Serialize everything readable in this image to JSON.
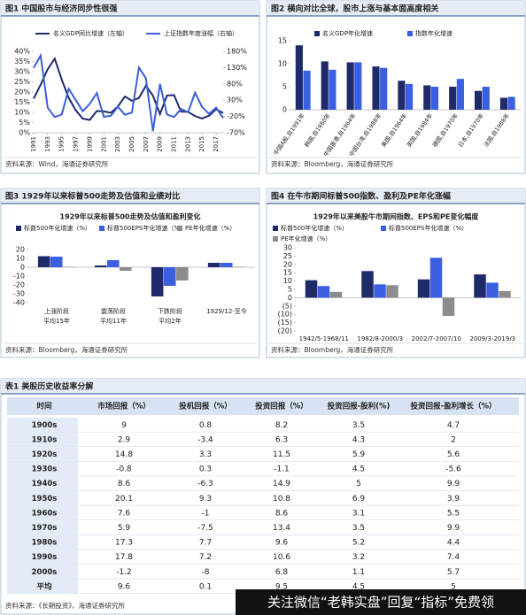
{
  "chart_data": [
    {
      "type": "line",
      "title": "图1  中国股市与经济同步性很强",
      "source": "资料来源：Wind，海通证券研究所",
      "x": [
        1991,
        1992,
        1993,
        1994,
        1995,
        1996,
        1997,
        1998,
        1999,
        2000,
        2001,
        2002,
        2003,
        2004,
        2005,
        2006,
        2007,
        2008,
        2009,
        2010,
        2011,
        2012,
        2013,
        2014,
        2015,
        2016,
        2017,
        2018
      ],
      "xlim": [
        1991,
        2018
      ],
      "xticks": [
        1991,
        1993,
        1995,
        1997,
        1999,
        2001,
        2003,
        2005,
        2007,
        2009,
        2011,
        2013,
        2015,
        2017
      ],
      "ylim": [
        0,
        40
      ],
      "yticks": [
        {
          "value": 0,
          "label": "0%"
        },
        {
          "value": 5,
          "label": "5%"
        },
        {
          "value": 10,
          "label": "10%"
        },
        {
          "value": 15,
          "label": "15%"
        },
        {
          "value": 20,
          "label": "20%"
        },
        {
          "value": 25,
          "label": "25%"
        },
        {
          "value": 30,
          "label": "30%"
        },
        {
          "value": 35,
          "label": "35%"
        },
        {
          "value": 40,
          "label": "40%"
        }
      ],
      "y2lim": [
        -70,
        180
      ],
      "y2ticks": [
        {
          "value": -70,
          "label": "-70%"
        },
        {
          "value": -20,
          "label": "-20%"
        },
        {
          "value": 30,
          "label": "30%"
        },
        {
          "value": 80,
          "label": "80%"
        },
        {
          "value": 130,
          "label": "130%"
        },
        {
          "value": 180,
          "label": "180%"
        }
      ],
      "series": [
        {
          "name": "名义GDP同比增速（左轴）",
          "color": "#1f2a6b",
          "values": [
            16.7,
            23.6,
            31.2,
            36.4,
            26.1,
            17.1,
            11,
            6.9,
            6.3,
            10.7,
            10.5,
            9.8,
            12.9,
            17.8,
            15.7,
            17.1,
            23.1,
            18.2,
            9.2,
            18.3,
            18.5,
            10.4,
            10.2,
            8.2,
            7,
            8.4,
            11.5,
            9.7
          ]
        },
        {
          "name": "上证指数年度涨幅（右轴）",
          "color": "#3c5fd6",
          "axis": "y2",
          "values": [
            129,
            167,
            7,
            -22,
            -14,
            65,
            30,
            -4,
            19,
            52,
            -21,
            -18,
            10,
            -15,
            -8,
            130,
            97,
            -65,
            80,
            -14,
            -22,
            3,
            -7,
            53,
            9,
            -12,
            7,
            -25
          ]
        }
      ]
    },
    {
      "type": "bar",
      "title": "图2  横向对比全球，股市上涨与基本面高度相关",
      "source": "资料来源：Bloomberg，海通证券研究所",
      "categories": [
        "中国A股,自1991年",
        "韩国,自1980年",
        "中国香港,自1964年",
        "中国台湾,自1988年",
        "美国,自1964年",
        "英国,自1984年",
        "德国,自1970年",
        "日本,自1970年",
        "法国,自1988年"
      ],
      "ylim": [
        0,
        15
      ],
      "yticks": [
        0,
        5,
        10,
        15
      ],
      "series": [
        {
          "name": "名义GDP年化增速",
          "color": "#1f2a6b",
          "values": [
            14,
            10.5,
            10.3,
            9.4,
            6.3,
            5.3,
            5,
            4.1,
            2.6
          ]
        },
        {
          "name": "指数年化增速",
          "color": "#3a5fe0",
          "values": [
            8.5,
            8.7,
            10.3,
            9.1,
            5.6,
            5,
            6.7,
            5,
            2.8
          ]
        }
      ]
    },
    {
      "type": "bar",
      "title": "图3  1929年以来标普500走势及估值和业绩对比",
      "subtitle": "1929年以来标普500走势及估值和盈利变化",
      "source": "资料来源：Bloomberg，海通证券研究所",
      "categories": [
        [
          "上涨阶段",
          "平均15年"
        ],
        [
          "震荡阶段",
          "平均11年"
        ],
        [
          "下跌阶段",
          "平均2年"
        ],
        [
          "1929/12-至今"
        ]
      ],
      "ylim": [
        -40,
        20
      ],
      "yticks": [
        -40,
        -30,
        -20,
        -10,
        0,
        10,
        20
      ],
      "series": [
        {
          "name": "标普500年化增速（%）",
          "color": "#1f2a6b",
          "values": [
            12.5,
            2,
            -33,
            5
          ]
        },
        {
          "name": "标普500EPS年化增速（%）",
          "color": "#3a5fe0",
          "values": [
            12,
            8,
            -21,
            5
          ]
        },
        {
          "name": "PE年化增速（%）",
          "color": "#8c8c8c",
          "values": [
            0.5,
            -4,
            -15,
            0.5
          ]
        }
      ]
    },
    {
      "type": "bar",
      "title": "图4  在牛市期间标普500指数、盈利及PE年化涨幅",
      "subtitle": "1929年以来美股牛市期间指数、EPS和PE变化幅度",
      "source": "资料来源：Bloomberg，海通证券研究所",
      "categories": [
        "1942/5-1968/11",
        "1982/8-2000/3",
        "2002/7-2007/10",
        "2009/3-2019/3"
      ],
      "ylim": [
        -20,
        30
      ],
      "yticks": [
        {
          "value": -20,
          "label": "(20)"
        },
        {
          "value": -15,
          "label": "(15)"
        },
        {
          "value": -10,
          "label": "(10)"
        },
        {
          "value": -5,
          "label": "(5)"
        },
        0,
        5,
        10,
        15,
        20,
        25,
        30
      ],
      "series": [
        {
          "name": "标普500年化增速（%）",
          "color": "#1f2a6b",
          "values": [
            10.5,
            16,
            11,
            14
          ]
        },
        {
          "name": "标普500EPS年化增速（%）",
          "color": "#3a5fe0",
          "values": [
            7,
            8,
            24,
            9
          ]
        },
        {
          "name": "PE年化增速（%）",
          "color": "#8c8c8c",
          "values": [
            3.5,
            7.5,
            -11,
            4
          ]
        }
      ]
    }
  ],
  "table": {
    "title": "表1 美股历史收益率分解",
    "header": [
      "时间",
      "市场回报（%）",
      "投机回报（%）",
      "投资回报（%）",
      "投资回报-股利(%)",
      "投资回报-盈利增长（%）"
    ],
    "rows": [
      [
        "1900s",
        9,
        0.8,
        8.2,
        3.5,
        4.7
      ],
      [
        "1910s",
        2.9,
        -3.4,
        6.3,
        4.3,
        2
      ],
      [
        "1920s",
        14.8,
        3.3,
        11.5,
        5.9,
        5.6
      ],
      [
        "1930s",
        -0.8,
        0.3,
        -1.1,
        4.5,
        -5.6
      ],
      [
        "1940s",
        8.6,
        -6.3,
        14.9,
        5,
        9.9
      ],
      [
        "1950s",
        20.1,
        9.3,
        10.8,
        6.9,
        3.9
      ],
      [
        "1960s",
        7.6,
        -1,
        8.6,
        3.1,
        5.5
      ],
      [
        "1970s",
        5.9,
        -7.5,
        13.4,
        3.5,
        9.9
      ],
      [
        "1980s",
        17.3,
        7.7,
        9.6,
        5.2,
        4.4
      ],
      [
        "1990s",
        17.8,
        7.2,
        10.6,
        3.2,
        7.4
      ],
      [
        "2000s",
        -1.2,
        -8,
        6.8,
        1.1,
        5.7
      ],
      [
        "平均",
        9.6,
        0.1,
        9.5,
        4.5,
        5
      ]
    ],
    "source": "资料来源：《长期投资》，海通证券研究所"
  },
  "watermark": "关注微信“老韩实盘”回复“指标”免费领"
}
